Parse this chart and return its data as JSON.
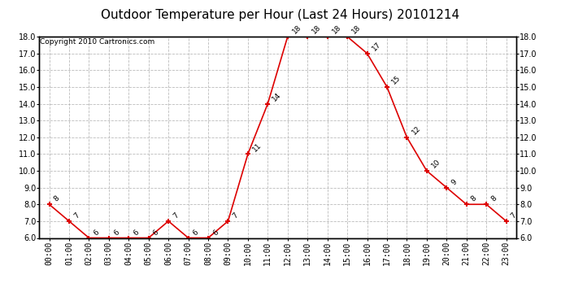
{
  "title": "Outdoor Temperature per Hour (Last 24 Hours) 20101214",
  "copyright": "Copyright 2010 Cartronics.com",
  "hours": [
    "00:00",
    "01:00",
    "02:00",
    "03:00",
    "04:00",
    "05:00",
    "06:00",
    "07:00",
    "08:00",
    "09:00",
    "10:00",
    "11:00",
    "12:00",
    "13:00",
    "14:00",
    "15:00",
    "16:00",
    "17:00",
    "18:00",
    "19:00",
    "20:00",
    "21:00",
    "22:00",
    "23:00"
  ],
  "values": [
    8,
    7,
    6,
    6,
    6,
    6,
    7,
    6,
    6,
    7,
    11,
    14,
    18,
    18,
    18,
    18,
    17,
    15,
    12,
    10,
    9,
    8,
    8,
    7
  ],
  "line_color": "#dd0000",
  "marker_color": "#dd0000",
  "bg_color": "#ffffff",
  "grid_color": "#bbbbbb",
  "ylim": [
    6.0,
    18.0
  ],
  "ytick_step": 1.0,
  "title_fontsize": 11,
  "annot_fontsize": 6.5,
  "tick_fontsize": 7,
  "copyright_fontsize": 6.5
}
